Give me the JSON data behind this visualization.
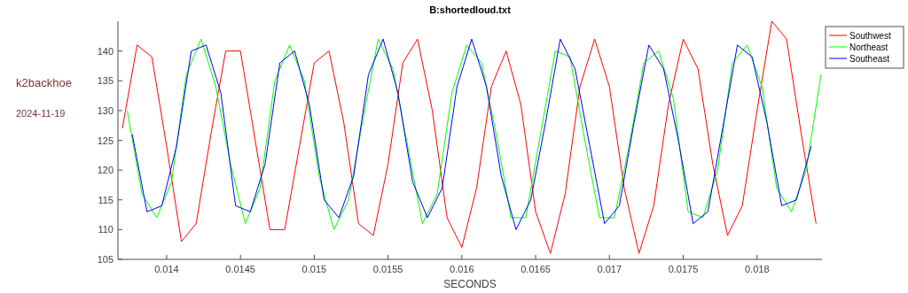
{
  "chart_data": {
    "type": "line",
    "title": "B:shortedloud.txt",
    "xlabel": "SECONDS",
    "annotations": [
      "k2backhoe",
      "2024-11-19"
    ],
    "xlim": [
      0.01367,
      0.01844
    ],
    "ylim": [
      105,
      145
    ],
    "xticks": [
      0.014,
      0.0145,
      0.015,
      0.0155,
      0.016,
      0.0165,
      0.017,
      0.0175,
      0.018
    ],
    "yticks": [
      105,
      110,
      115,
      120,
      125,
      130,
      135,
      140
    ],
    "grid": false,
    "legend": "top right",
    "line_style": "solid",
    "marker": "none",
    "series": [
      {
        "name": "Southwest",
        "color": "#ff0000",
        "x": [
          0.0137,
          0.0138,
          0.0139,
          0.014,
          0.0141,
          0.0142,
          0.0143,
          0.0144,
          0.0145,
          0.0146,
          0.0147,
          0.0148,
          0.0149,
          0.015,
          0.0151,
          0.0152,
          0.0153,
          0.0154,
          0.0155,
          0.0156,
          0.0157,
          0.0158,
          0.0159,
          0.016,
          0.0161,
          0.0162,
          0.0163,
          0.0164,
          0.0165,
          0.0166,
          0.0167,
          0.0168,
          0.0169,
          0.017,
          0.0171,
          0.0172,
          0.0173,
          0.0174,
          0.0175,
          0.0176,
          0.0177,
          0.0178,
          0.0179,
          0.018,
          0.0181,
          0.0182,
          0.0183,
          0.0184
        ],
        "values": [
          127,
          141,
          139,
          124,
          108,
          111,
          126,
          140,
          140,
          125,
          110,
          110,
          124,
          138,
          140,
          128,
          111,
          109,
          121,
          138,
          142,
          130,
          112,
          107,
          117,
          134,
          140,
          131,
          113,
          106,
          116,
          134,
          142,
          134,
          117,
          106,
          114,
          131,
          142,
          137,
          121,
          109,
          114,
          130,
          145,
          142,
          126,
          111
        ]
      },
      {
        "name": "Northeast",
        "color": "#00ff00",
        "x": [
          0.013733,
          0.013833,
          0.013933,
          0.014033,
          0.014133,
          0.014233,
          0.014333,
          0.014433,
          0.014533,
          0.014633,
          0.014733,
          0.014833,
          0.014933,
          0.015033,
          0.015133,
          0.015233,
          0.015333,
          0.015433,
          0.015533,
          0.015633,
          0.015733,
          0.015833,
          0.015933,
          0.016033,
          0.016133,
          0.016233,
          0.016333,
          0.016433,
          0.016533,
          0.016633,
          0.016733,
          0.016833,
          0.016933,
          0.017033,
          0.017133,
          0.017233,
          0.017333,
          0.017433,
          0.017533,
          0.017633,
          0.017733,
          0.017833,
          0.017933,
          0.018033,
          0.018133,
          0.018233,
          0.018333,
          0.018433
        ],
        "values": [
          130,
          116,
          112,
          118,
          136,
          142,
          134,
          121,
          111,
          117,
          135,
          141,
          135,
          119,
          110,
          115,
          129,
          142,
          137,
          124,
          111,
          116,
          133,
          141,
          138,
          126,
          112,
          112,
          126,
          140,
          139,
          125,
          112,
          112,
          124,
          138,
          140,
          132,
          113,
          112,
          120,
          138,
          141,
          134,
          117,
          113,
          120,
          136
        ]
      },
      {
        "name": "Southeast",
        "color": "#0000ff",
        "x": [
          0.013767,
          0.013867,
          0.013967,
          0.014067,
          0.014167,
          0.014267,
          0.014367,
          0.014467,
          0.014567,
          0.014667,
          0.014767,
          0.014867,
          0.014967,
          0.015067,
          0.015167,
          0.015267,
          0.015367,
          0.015467,
          0.015567,
          0.015667,
          0.015767,
          0.015867,
          0.015967,
          0.016067,
          0.016167,
          0.016267,
          0.016367,
          0.016467,
          0.016567,
          0.016667,
          0.016767,
          0.016867,
          0.016967,
          0.017067,
          0.017167,
          0.017267,
          0.017367,
          0.017467,
          0.017567,
          0.017667,
          0.017767,
          0.017867,
          0.017967,
          0.018067,
          0.018167,
          0.018267,
          0.018367
        ],
        "values": [
          126,
          113,
          114,
          124,
          140,
          141,
          133,
          114,
          113,
          121,
          138,
          140,
          131,
          115,
          112,
          119,
          136,
          142,
          133,
          118,
          112,
          117,
          134,
          142,
          134,
          119,
          110,
          115,
          128,
          142,
          137,
          124,
          111,
          114,
          128,
          141,
          137,
          125,
          111,
          113,
          127,
          141,
          139,
          128,
          114,
          115,
          124
        ]
      }
    ]
  }
}
